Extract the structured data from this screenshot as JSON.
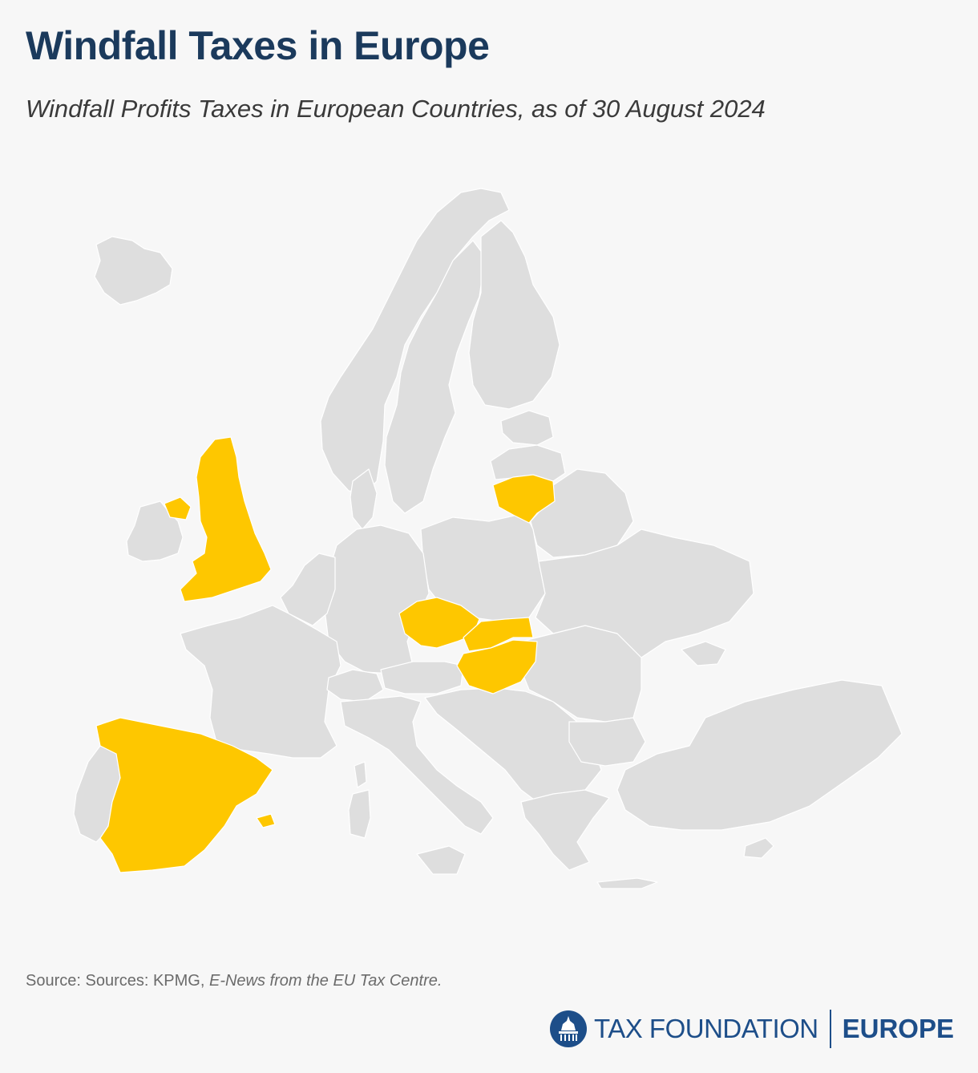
{
  "header": {
    "title": "Windfall Taxes in Europe",
    "subtitle": "Windfall Profits Taxes in European Countries, as of 30 August 2024"
  },
  "colors": {
    "has_tax": "#fec700",
    "no_tax": "#dedede",
    "title": "#1b3a5c",
    "brand": "#1d4e89",
    "background": "#f7f7f7"
  },
  "map": {
    "highlighted_countries": [
      "United Kingdom",
      "Spain",
      "Czech Republic",
      "Slovakia",
      "Hungary",
      "Lithuania"
    ]
  },
  "source": {
    "prefix": "Source: Sources: KPMG, ",
    "italic": "E-News from the EU Tax Centre."
  },
  "footer": {
    "brand": "TAX FOUNDATION",
    "region": "EUROPE",
    "logo_icon": "capitol-dome-icon"
  }
}
